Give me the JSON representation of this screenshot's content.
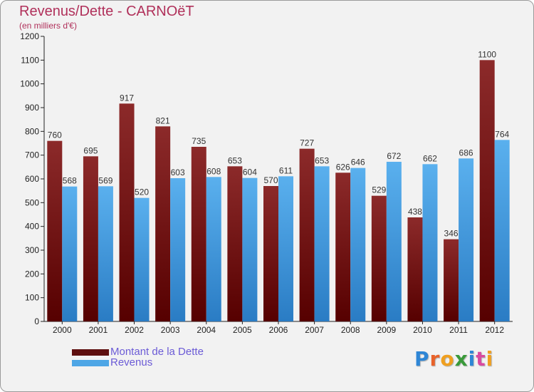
{
  "chart_data": {
    "type": "bar",
    "title": "Revenus/Dette - CARNOëT",
    "subtitle": "(en milliers d'€)",
    "xlabel": "",
    "ylabel": "",
    "categories": [
      "2000",
      "2001",
      "2002",
      "2003",
      "2004",
      "2005",
      "2006",
      "2007",
      "2008",
      "2009",
      "2010",
      "2011",
      "2012"
    ],
    "series": [
      {
        "name": "Montant de la Dette",
        "color": "#7a1a1a",
        "values": [
          760,
          695,
          917,
          821,
          735,
          653,
          570,
          727,
          626,
          529,
          438,
          346,
          1100
        ]
      },
      {
        "name": "Revenus",
        "color": "#4ea6e6",
        "values": [
          568,
          569,
          520,
          603,
          608,
          604,
          611,
          653,
          646,
          672,
          662,
          686,
          764
        ]
      }
    ],
    "ylim": [
      0,
      1200
    ],
    "yticks": [
      0,
      100,
      200,
      300,
      400,
      500,
      600,
      700,
      800,
      900,
      1000,
      1100,
      1200
    ],
    "grid": false,
    "legend_position": "bottom-left"
  },
  "logo": {
    "text": "Proxiti",
    "letters": [
      {
        "ch": "P",
        "color": "#2e86d6"
      },
      {
        "ch": "r",
        "color": "#e8622a"
      },
      {
        "ch": "o",
        "color": "#f0a020"
      },
      {
        "ch": "x",
        "color": "#3a9a3a"
      },
      {
        "ch": "i",
        "color": "#2e86d6"
      },
      {
        "ch": "t",
        "color": "#d94aa0"
      },
      {
        "ch": "i",
        "color": "#f0a020"
      }
    ]
  }
}
